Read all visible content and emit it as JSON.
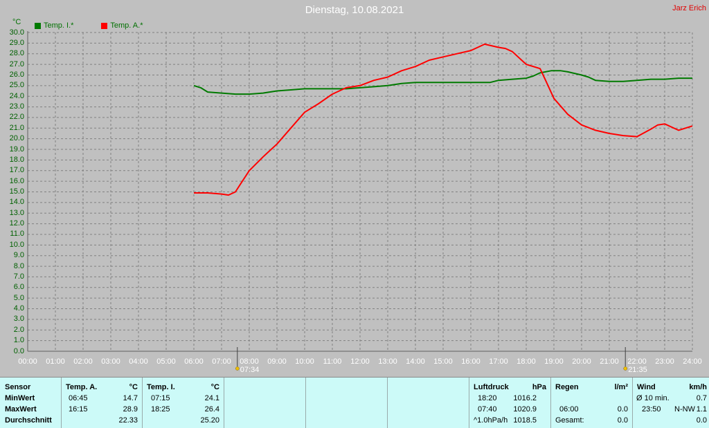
{
  "title": "Dienstag, 10.08.2021",
  "author": "Jarz Erich",
  "unit_label": "°C",
  "chart_data": {
    "type": "line",
    "title": "Dienstag, 10.08.2021",
    "ylabel": "°C",
    "ylim": [
      0,
      30
    ],
    "xlim": [
      0,
      24
    ],
    "grid": true,
    "legend_position": "top-left",
    "y_ticks": [
      "0.0",
      "1.0",
      "2.0",
      "3.0",
      "4.0",
      "5.0",
      "6.0",
      "7.0",
      "8.0",
      "9.0",
      "10.0",
      "11.0",
      "12.0",
      "13.0",
      "14.0",
      "15.0",
      "16.0",
      "17.0",
      "18.0",
      "19.0",
      "20.0",
      "21.0",
      "22.0",
      "23.0",
      "24.0",
      "25.0",
      "26.0",
      "27.0",
      "28.0",
      "29.0",
      "30.0"
    ],
    "x_ticks": [
      "00:00",
      "01:00",
      "02:00",
      "03:00",
      "04:00",
      "05:00",
      "06:00",
      "07:00",
      "08:00",
      "09:00",
      "10:00",
      "11:00",
      "12:00",
      "13:00",
      "14:00",
      "15:00",
      "16:00",
      "17:00",
      "18:00",
      "19:00",
      "20:00",
      "21:00",
      "22:00",
      "23:00",
      "24:00"
    ],
    "markers": [
      {
        "label": "07:34",
        "x": 7.57
      },
      {
        "label": "21:35",
        "x": 21.58
      }
    ],
    "series": [
      {
        "name": "Temp. I.*",
        "color": "#007a00",
        "x": [
          6.0,
          6.25,
          6.5,
          7.0,
          7.5,
          8.0,
          8.5,
          9.0,
          9.5,
          10.0,
          10.5,
          11.0,
          11.5,
          12.0,
          12.5,
          13.0,
          13.5,
          14.0,
          15.0,
          16.0,
          16.7,
          17.0,
          17.5,
          18.0,
          18.25,
          18.5,
          18.9,
          19.25,
          19.5,
          20.0,
          20.25,
          20.5,
          21.0,
          21.5,
          22.0,
          22.5,
          23.0,
          23.5,
          24.0
        ],
        "y": [
          25.0,
          24.8,
          24.4,
          24.3,
          24.2,
          24.2,
          24.3,
          24.5,
          24.6,
          24.7,
          24.7,
          24.7,
          24.7,
          24.8,
          24.9,
          25.0,
          25.2,
          25.3,
          25.3,
          25.3,
          25.3,
          25.5,
          25.6,
          25.7,
          25.9,
          26.2,
          26.4,
          26.4,
          26.3,
          26.0,
          25.8,
          25.5,
          25.4,
          25.4,
          25.5,
          25.6,
          25.6,
          25.7,
          25.7
        ]
      },
      {
        "name": "Temp. A.*",
        "color": "#ff0000",
        "x": [
          6.0,
          6.5,
          7.0,
          7.25,
          7.5,
          7.75,
          8.0,
          8.5,
          9.0,
          9.5,
          10.0,
          10.5,
          11.0,
          11.5,
          12.0,
          12.5,
          13.0,
          13.5,
          14.0,
          14.5,
          15.0,
          15.5,
          16.0,
          16.25,
          16.5,
          17.0,
          17.25,
          17.5,
          18.0,
          18.5,
          18.7,
          19.0,
          19.5,
          20.0,
          20.5,
          21.0,
          21.5,
          22.0,
          22.5,
          22.75,
          23.0,
          23.5,
          24.0
        ],
        "y": [
          14.9,
          14.9,
          14.8,
          14.7,
          15.0,
          16.0,
          17.0,
          18.3,
          19.5,
          21.0,
          22.5,
          23.3,
          24.2,
          24.8,
          25.0,
          25.5,
          25.8,
          26.4,
          26.8,
          27.4,
          27.7,
          28.0,
          28.3,
          28.6,
          28.9,
          28.6,
          28.5,
          28.2,
          27.0,
          26.6,
          25.5,
          23.8,
          22.3,
          21.3,
          20.8,
          20.5,
          20.3,
          20.2,
          20.9,
          21.3,
          21.4,
          20.8,
          21.2
        ]
      }
    ]
  },
  "table": {
    "sensor_header": "Sensor",
    "row_labels": [
      "MinWert",
      "MaxWert",
      "Durchschnitt"
    ],
    "temp_a": {
      "header": "Temp. A.",
      "unit": "°C",
      "min_time": "06:45",
      "min": "14.7",
      "max_time": "16:15",
      "max": "28.9",
      "avg": "22.33"
    },
    "temp_i": {
      "header": "Temp. I.",
      "unit": "°C",
      "min_time": "07:15",
      "min": "24.1",
      "max_time": "18:25",
      "max": "26.4",
      "avg": "25.20"
    },
    "pressure": {
      "header": "Luftdruck",
      "unit": "hPa",
      "min_time": "18:20",
      "min": "1016.2",
      "max_time": "07:40",
      "max": "1020.9",
      "trend_label": "^1.0hPa/h",
      "current": "1018.5"
    },
    "rain": {
      "header": "Regen",
      "unit": "l/m²",
      "row1": "",
      "row2_time": "06:00",
      "row2": "0.0",
      "total_label": "Gesamt:",
      "total": "0.0"
    },
    "wind": {
      "header": "Wind",
      "unit": "km/h",
      "avg_label": "Ø 10 min.",
      "avg": "0.7",
      "max_time": "23:50",
      "max_dir": "N-NW",
      "max": "1.1",
      "current": "0.0"
    }
  }
}
